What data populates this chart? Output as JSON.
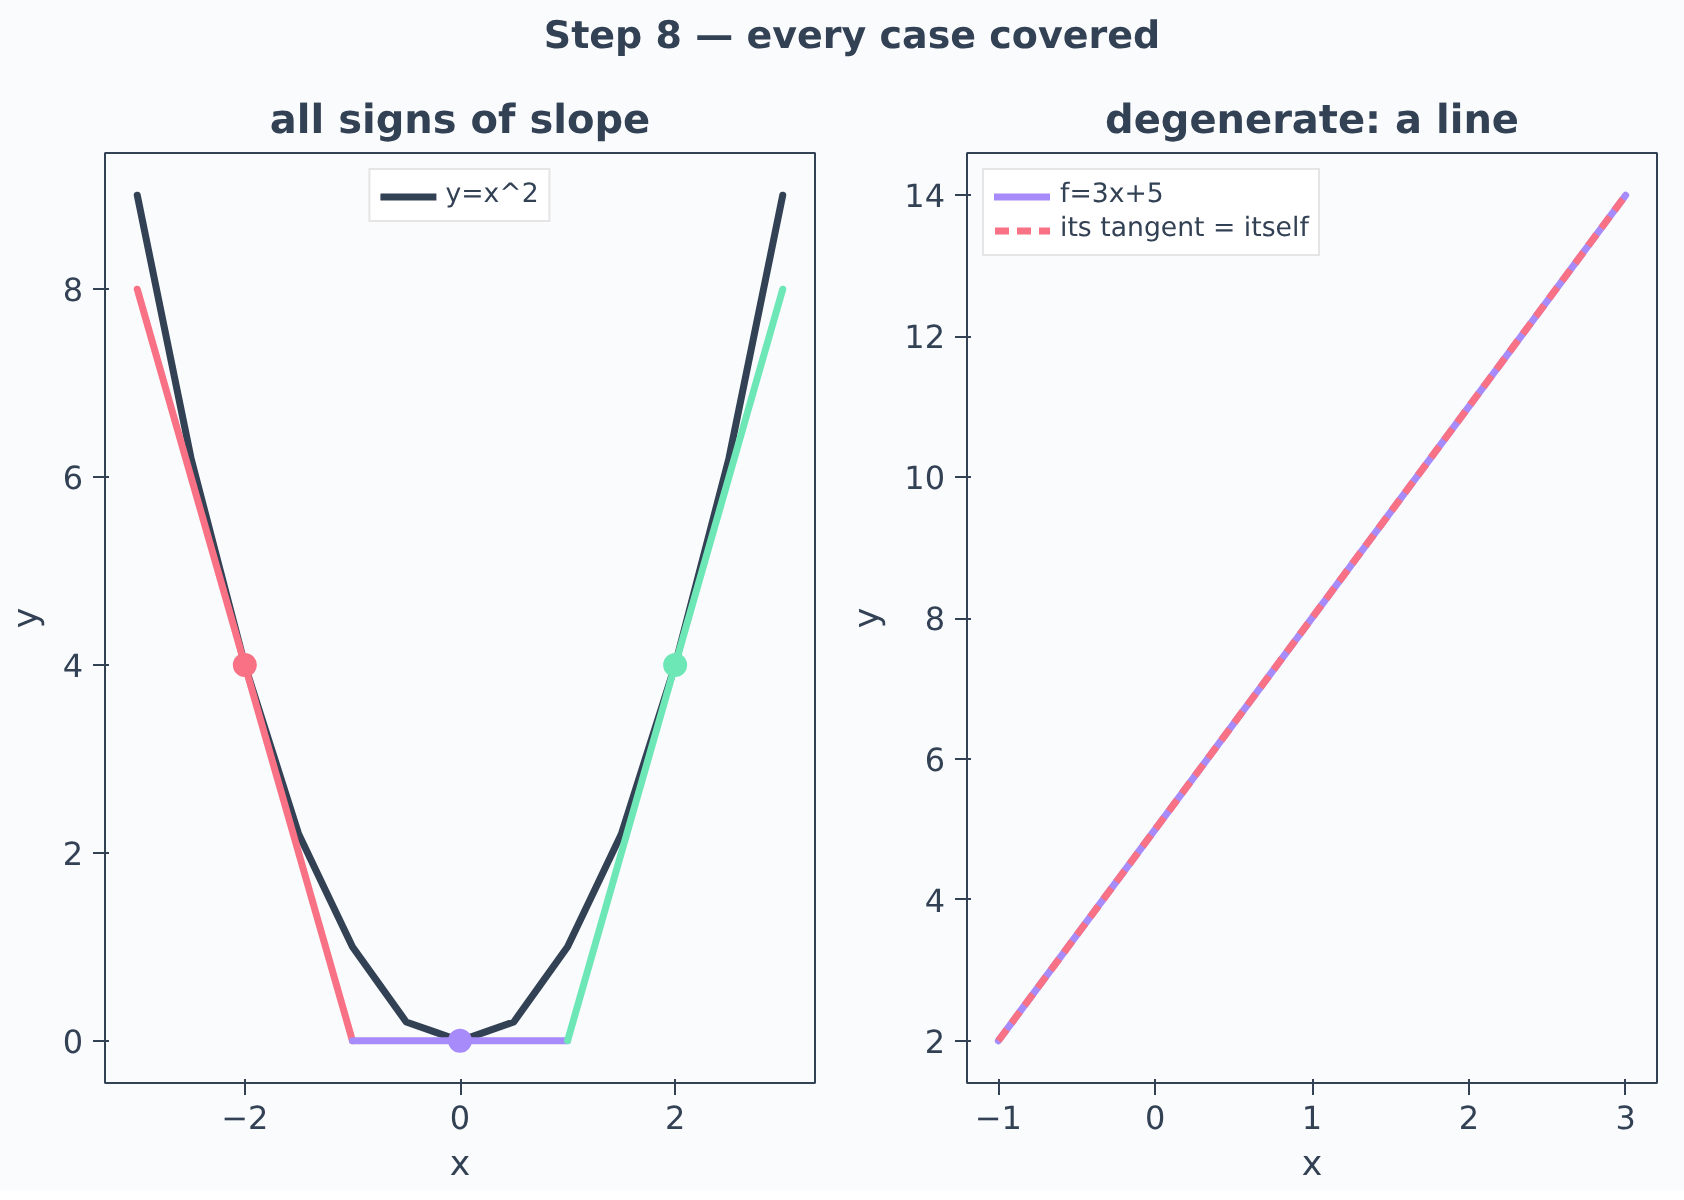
{
  "chart_data": [
    {
      "type": "line",
      "title": "all signs of slope",
      "xlabel": "x",
      "ylabel": "y",
      "annotations": [
        "Step 8 — every case covered"
      ],
      "xlim": [
        -3.3,
        3.3
      ],
      "ylim": [
        -0.45,
        9.45
      ],
      "xticks": [
        {
          "value": -2,
          "label": "−2"
        },
        0,
        2
      ],
      "yticks": [
        0,
        2,
        4,
        6,
        8
      ],
      "grid": false,
      "legend": "top",
      "series": [
        {
          "name": "y=x^2",
          "color": "#334155",
          "x": [
            -3,
            -2.75,
            -2.5,
            -2.25,
            -2,
            -1.75,
            -1.5,
            -1.25,
            -1,
            -0.75,
            -0.5,
            -0.25,
            0,
            0.25,
            0.5,
            0.75,
            1,
            1.25,
            1.5,
            1.75,
            2,
            2.25,
            2.5,
            2.75,
            3
          ],
          "values": [
            9,
            7.6,
            6.2,
            5.1,
            4,
            3.1,
            2.2,
            1.6,
            1,
            0.6,
            0.2,
            0.1,
            0,
            0.1,
            0.2,
            0.6,
            1,
            1.6,
            2.2,
            3.1,
            4,
            5.1,
            6.2,
            7.6,
            9
          ]
        },
        {
          "color": "#f87184",
          "x": [
            -3,
            -1
          ],
          "values": [
            8,
            0
          ]
        },
        {
          "color": "#a78bfa",
          "x": [
            -1,
            1
          ],
          "values": [
            0,
            0
          ]
        },
        {
          "color": "#6ee7b7",
          "x": [
            1,
            3
          ],
          "values": [
            0,
            8
          ]
        },
        {
          "type": "scatter",
          "marker": "circle",
          "color": "#f87184",
          "x": [
            -2
          ],
          "values": [
            4
          ]
        },
        {
          "type": "scatter",
          "marker": "circle",
          "color": "#a78bfa",
          "x": [
            0
          ],
          "values": [
            0
          ]
        },
        {
          "type": "scatter",
          "marker": "circle",
          "color": "#6ee7b7",
          "x": [
            2
          ],
          "values": [
            4
          ]
        }
      ]
    },
    {
      "type": "line",
      "title": "degenerate: a line",
      "xlabel": "x",
      "ylabel": "y",
      "xlim": [
        -1.2,
        3.2
      ],
      "ylim": [
        1.4,
        14.6
      ],
      "xticks": [
        {
          "value": -1,
          "label": "−1"
        },
        0,
        1,
        2,
        3
      ],
      "yticks": [
        2,
        4,
        6,
        8,
        10,
        12,
        14
      ],
      "grid": false,
      "legend": "top left",
      "series": [
        {
          "name": "f=3x+5",
          "color": "#a78bfa",
          "x": [
            -1,
            3
          ],
          "values": [
            2,
            14
          ]
        },
        {
          "name": "its tangent = itself",
          "line_style": "dashed",
          "color": "#f87184",
          "x": [
            -1,
            3
          ],
          "values": [
            2,
            14
          ]
        }
      ]
    }
  ]
}
